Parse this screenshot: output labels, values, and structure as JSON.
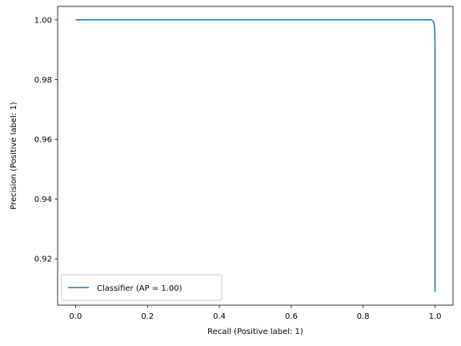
{
  "chart_data": {
    "type": "line",
    "title": "",
    "xlabel": "Recall (Positive label: 1)",
    "ylabel": "Precision (Positive label: 1)",
    "xlim": [
      -0.05,
      1.05
    ],
    "ylim": [
      0.9045,
      1.0045
    ],
    "xticks": [
      0.0,
      0.2,
      0.4,
      0.6,
      0.8,
      1.0
    ],
    "xtick_labels": [
      "0.0",
      "0.2",
      "0.4",
      "0.6",
      "0.8",
      "1.0"
    ],
    "yticks": [
      0.92,
      0.94,
      0.96,
      0.98,
      1.0
    ],
    "ytick_labels": [
      "0.92",
      "0.94",
      "0.96",
      "0.98",
      "1.00"
    ],
    "grid": false,
    "legend": {
      "position": "lower-left"
    },
    "series": [
      {
        "name": "Classifier (AP = 1.00)",
        "color": "#1f77b4",
        "x": [
          0.0,
          0.2,
          0.4,
          0.6,
          0.8,
          0.95,
          0.99,
          0.995,
          0.997,
          0.998,
          0.999,
          0.9995,
          1.0,
          1.0,
          1.0,
          1.0
        ],
        "y": [
          1.0,
          1.0,
          1.0,
          1.0,
          1.0,
          1.0,
          1.0,
          0.9995,
          0.999,
          0.998,
          0.997,
          0.995,
          0.99,
          0.98,
          0.95,
          0.909
        ]
      }
    ]
  }
}
